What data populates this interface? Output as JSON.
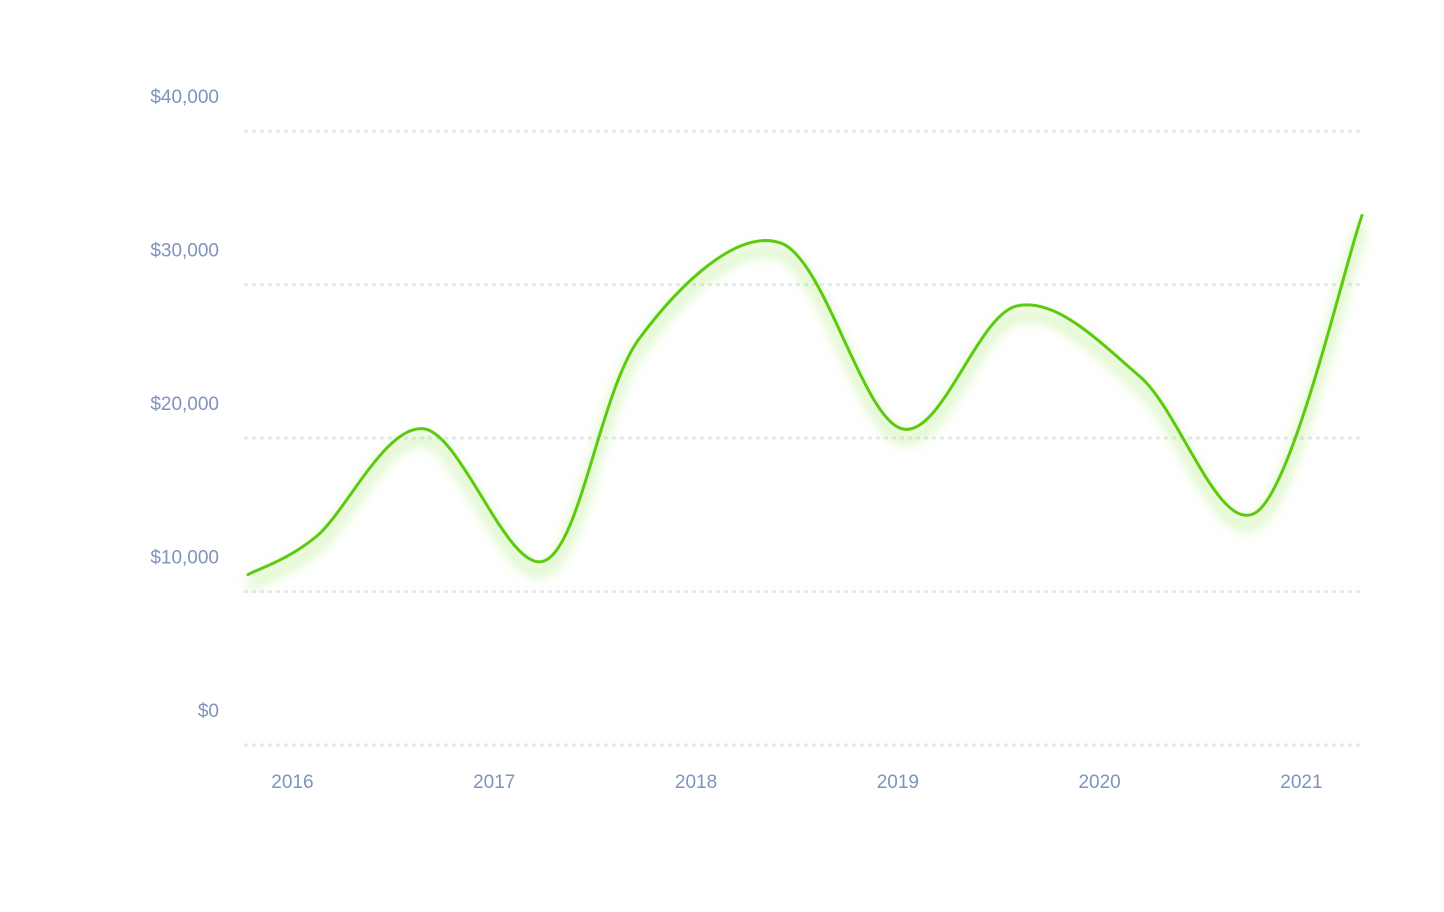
{
  "colors": {
    "background": "#ffffff",
    "line": "#5ccb0f",
    "line_glow": "#a6e86f",
    "grid": "#e6e8ec",
    "tick_text": "#7f93bd"
  },
  "chart_data": {
    "type": "line",
    "title": "",
    "xlabel": "",
    "ylabel": "",
    "x_ticks": [
      2016,
      2017,
      2018,
      2019,
      2020,
      2021
    ],
    "y_ticks": [
      {
        "value": 0,
        "label": "$0"
      },
      {
        "value": 10000,
        "label": "$10,000"
      },
      {
        "value": 20000,
        "label": "$20,000"
      },
      {
        "value": 30000,
        "label": "$30,000"
      },
      {
        "value": 40000,
        "label": "$40,000"
      }
    ],
    "xlim": [
      2015.76,
      2021.31
    ],
    "ylim": [
      0,
      40000
    ],
    "grid": true,
    "legend": "none",
    "series": [
      {
        "points": [
          {
            "x": 2015.78,
            "y": 11100
          },
          {
            "x": 2016.12,
            "y": 13600
          },
          {
            "x": 2016.65,
            "y": 20600
          },
          {
            "x": 2017.25,
            "y": 12000
          },
          {
            "x": 2017.72,
            "y": 26500
          },
          {
            "x": 2018.42,
            "y": 32700
          },
          {
            "x": 2019.02,
            "y": 20600
          },
          {
            "x": 2019.59,
            "y": 28600
          },
          {
            "x": 2020.2,
            "y": 24000
          },
          {
            "x": 2020.78,
            "y": 15200
          },
          {
            "x": 2021.3,
            "y": 34500
          }
        ]
      }
    ]
  }
}
